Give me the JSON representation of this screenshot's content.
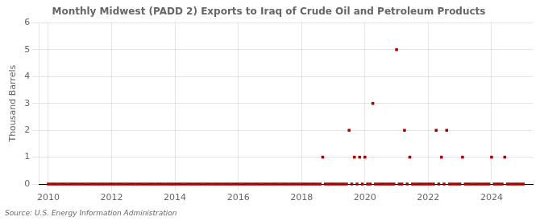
{
  "chart_data": {
    "type": "scatter",
    "title": "Monthly Midwest (PADD 2) Exports to Iraq of Crude Oil and Petroleum Products",
    "ylabel": "Thousand Barrels",
    "source": "Source: U.S. Energy Information Administration",
    "color": "#aa0000",
    "marker": "square",
    "grid": true,
    "xlim": [
      2009.7,
      2025.3
    ],
    "ylim": [
      0,
      6
    ],
    "xticks": [
      2010,
      2012,
      2014,
      2016,
      2018,
      2020,
      2022,
      2024
    ],
    "yticks": [
      0,
      1,
      2,
      3,
      4,
      5,
      6
    ],
    "x": [
      2010.0,
      2010.083,
      2010.167,
      2010.25,
      2010.333,
      2010.417,
      2010.5,
      2010.583,
      2010.667,
      2010.75,
      2010.833,
      2010.917,
      2011.0,
      2011.083,
      2011.167,
      2011.25,
      2011.333,
      2011.417,
      2011.5,
      2011.583,
      2011.667,
      2011.75,
      2011.833,
      2011.917,
      2012.0,
      2012.083,
      2012.167,
      2012.25,
      2012.333,
      2012.417,
      2012.5,
      2012.583,
      2012.667,
      2012.75,
      2012.833,
      2012.917,
      2013.0,
      2013.083,
      2013.167,
      2013.25,
      2013.333,
      2013.417,
      2013.5,
      2013.583,
      2013.667,
      2013.75,
      2013.833,
      2013.917,
      2014.0,
      2014.083,
      2014.167,
      2014.25,
      2014.333,
      2014.417,
      2014.5,
      2014.583,
      2014.667,
      2014.75,
      2014.833,
      2014.917,
      2015.0,
      2015.083,
      2015.167,
      2015.25,
      2015.333,
      2015.417,
      2015.5,
      2015.583,
      2015.667,
      2015.75,
      2015.833,
      2015.917,
      2016.0,
      2016.083,
      2016.167,
      2016.25,
      2016.333,
      2016.417,
      2016.5,
      2016.583,
      2016.667,
      2016.75,
      2016.833,
      2016.917,
      2017.0,
      2017.083,
      2017.167,
      2017.25,
      2017.333,
      2017.417,
      2017.5,
      2017.583,
      2017.667,
      2017.75,
      2017.833,
      2017.917,
      2018.0,
      2018.083,
      2018.167,
      2018.25,
      2018.333,
      2018.417,
      2018.5,
      2018.583,
      2018.667,
      2018.75,
      2018.833,
      2018.917,
      2019.0,
      2019.083,
      2019.167,
      2019.25,
      2019.333,
      2019.417,
      2019.5,
      2019.583,
      2019.667,
      2019.75,
      2019.833,
      2019.917,
      2020.0,
      2020.083,
      2020.167,
      2020.25,
      2020.333,
      2020.417,
      2020.5,
      2020.583,
      2020.667,
      2020.75,
      2020.833,
      2020.917,
      2021.0,
      2021.083,
      2021.167,
      2021.25,
      2021.333,
      2021.417,
      2021.5,
      2021.583,
      2021.667,
      2021.75,
      2021.833,
      2021.917,
      2022.0,
      2022.083,
      2022.167,
      2022.25,
      2022.333,
      2022.417,
      2022.5,
      2022.583,
      2022.667,
      2022.75,
      2022.833,
      2022.917,
      2023.0,
      2023.083,
      2023.167,
      2023.25,
      2023.333,
      2023.417,
      2023.5,
      2023.583,
      2023.667,
      2023.75,
      2023.833,
      2023.917,
      2024.0,
      2024.083,
      2024.167,
      2024.25,
      2024.333,
      2024.417,
      2024.5,
      2024.583,
      2024.667,
      2024.75,
      2024.833,
      2024.917,
      2025.0
    ],
    "values": [
      0,
      0,
      0,
      0,
      0,
      0,
      0,
      0,
      0,
      0,
      0,
      0,
      0,
      0,
      0,
      0,
      0,
      0,
      0,
      0,
      0,
      0,
      0,
      0,
      0,
      0,
      0,
      0,
      0,
      0,
      0,
      0,
      0,
      0,
      0,
      0,
      0,
      0,
      0,
      0,
      0,
      0,
      0,
      0,
      0,
      0,
      0,
      0,
      0,
      0,
      0,
      0,
      0,
      0,
      0,
      0,
      0,
      0,
      0,
      0,
      0,
      0,
      0,
      0,
      0,
      0,
      0,
      0,
      0,
      0,
      0,
      0,
      0,
      0,
      0,
      0,
      0,
      0,
      0,
      0,
      0,
      0,
      0,
      0,
      0,
      0,
      0,
      0,
      0,
      0,
      0,
      0,
      0,
      0,
      0,
      0,
      0,
      0,
      0,
      0,
      0,
      0,
      0,
      0,
      1,
      0,
      0,
      0,
      0,
      0,
      0,
      0,
      0,
      0,
      2,
      0,
      1,
      0,
      1,
      0,
      1,
      0,
      0,
      3,
      0,
      0,
      0,
      0,
      0,
      0,
      0,
      0,
      5,
      0,
      0,
      2,
      0,
      1,
      0,
      0,
      0,
      0,
      0,
      0,
      0,
      0,
      0,
      2,
      0,
      1,
      0,
      2,
      0,
      0,
      0,
      0,
      0,
      1,
      0,
      0,
      0,
      0,
      0,
      0,
      0,
      0,
      0,
      0,
      1,
      0,
      0,
      0,
      0,
      1,
      0,
      0,
      0,
      0,
      0,
      0,
      0
    ]
  }
}
